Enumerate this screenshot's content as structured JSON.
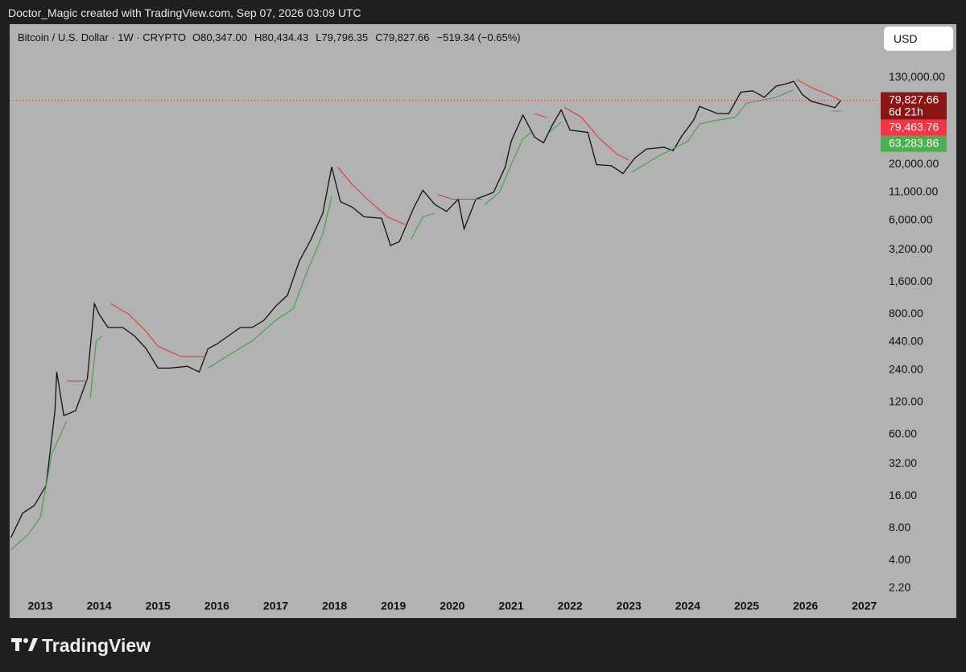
{
  "header": {
    "attribution": "Doctor_Magic created with TradingView.com, Sep 07, 2026 03:09 UTC"
  },
  "footer": {
    "brand": "TradingView"
  },
  "currency_button": "USD",
  "legend": {
    "symbol": "Bitcoin / U.S. Dollar · 1W · CRYPTO",
    "ohlc": [
      "O80,347.00",
      "H80,434.43",
      "L79,796.35",
      "C79,827.66",
      "−519.34 (−0.65%)"
    ]
  },
  "chart_data": {
    "type": "line",
    "log_scale": true,
    "grid": false,
    "xlim": [
      2012.48,
      2027.25
    ],
    "xticks": [
      2013,
      2014,
      2015,
      2016,
      2017,
      2018,
      2019,
      2020,
      2021,
      2022,
      2023,
      2024,
      2025,
      2026,
      2027
    ],
    "ylim": [
      1.87,
      411000
    ],
    "yticks": [
      {
        "value": 130000,
        "label": "130,000.00"
      },
      {
        "value": 20000,
        "label": "20,000.00"
      },
      {
        "value": 11000,
        "label": "11,000.00"
      },
      {
        "value": 6000,
        "label": "6,000.00"
      },
      {
        "value": 3200,
        "label": "3,200.00"
      },
      {
        "value": 1600,
        "label": "1,600.00"
      },
      {
        "value": 800,
        "label": "800.00"
      },
      {
        "value": 440,
        "label": "440.00"
      },
      {
        "value": 240,
        "label": "240.00"
      },
      {
        "value": 120,
        "label": "120.00"
      },
      {
        "value": 60,
        "label": "60.00"
      },
      {
        "value": 32,
        "label": "32.00"
      },
      {
        "value": 16,
        "label": "16.00"
      },
      {
        "value": 8,
        "label": "8.00"
      },
      {
        "value": 4,
        "label": "4.00"
      },
      {
        "value": 2.2,
        "label": "2.20"
      }
    ],
    "series": [
      {
        "color": "#111111",
        "x": [
          2012.5,
          2012.7,
          2012.9,
          2013.1,
          2013.25,
          2013.28,
          2013.4,
          2013.6,
          2013.8,
          2013.92,
          2014.0,
          2014.15,
          2014.4,
          2014.6,
          2014.8,
          2015.0,
          2015.2,
          2015.5,
          2015.7,
          2015.85,
          2016.0,
          2016.4,
          2016.6,
          2016.8,
          2017.0,
          2017.2,
          2017.4,
          2017.6,
          2017.8,
          2017.95,
          2018.1,
          2018.3,
          2018.5,
          2018.8,
          2018.95,
          2019.1,
          2019.35,
          2019.5,
          2019.7,
          2019.9,
          2020.1,
          2020.2,
          2020.4,
          2020.7,
          2020.9,
          2021.0,
          2021.2,
          2021.4,
          2021.55,
          2021.7,
          2021.85,
          2022.0,
          2022.3,
          2022.45,
          2022.7,
          2022.9,
          2023.1,
          2023.3,
          2023.6,
          2023.75,
          2023.9,
          2024.1,
          2024.2,
          2024.5,
          2024.7,
          2024.9,
          2025.1,
          2025.3,
          2025.5,
          2025.7,
          2025.8,
          2025.95,
          2026.1,
          2026.3,
          2026.5,
          2026.6
        ],
        "values": [
          6.5,
          11,
          13,
          20,
          100,
          230,
          90,
          100,
          200,
          1000,
          800,
          600,
          600,
          500,
          380,
          250,
          250,
          260,
          230,
          380,
          420,
          600,
          600,
          700,
          950,
          1200,
          2500,
          4000,
          7000,
          19000,
          9000,
          8000,
          6500,
          6300,
          3500,
          3800,
          8000,
          11500,
          8500,
          7300,
          9500,
          5000,
          9500,
          11000,
          19000,
          33000,
          58000,
          36000,
          32000,
          47000,
          65000,
          42000,
          40000,
          20000,
          19500,
          16500,
          23000,
          28000,
          29000,
          27000,
          37000,
          52000,
          70000,
          60000,
          60000,
          95000,
          98000,
          85000,
          108000,
          115000,
          120000,
          90000,
          78000,
          73000,
          68000,
          79827.66
        ]
      },
      {
        "color": "#e53935",
        "x": [
          2013.45,
          2013.8,
          2013.82,
          2014.2,
          2014.5,
          2014.8,
          2015.0,
          2015.4,
          2015.8,
          2015.82,
          2018.05,
          2018.3,
          2018.6,
          2018.9,
          2019.2,
          2019.22,
          2019.75,
          2020.0,
          2020.5,
          2020.52,
          2021.4,
          2021.6,
          2021.62,
          2021.9,
          2022.2,
          2022.5,
          2022.8,
          2023.0,
          2023.02,
          2025.85,
          2026.1,
          2026.4,
          2026.6
        ],
        "values": [
          190,
          190,
          null,
          1000,
          800,
          550,
          400,
          320,
          320,
          null,
          19000,
          13000,
          9000,
          6500,
          5500,
          null,
          10500,
          9500,
          9500,
          null,
          60000,
          55000,
          null,
          69000,
          55000,
          35000,
          25000,
          22000,
          null,
          125000,
          105000,
          90000,
          79463.76
        ]
      },
      {
        "color": "#43a047",
        "x": [
          2012.5,
          2012.8,
          2013.0,
          2013.2,
          2013.45,
          2013.47,
          2013.85,
          2013.95,
          2014.05,
          2014.07,
          2015.85,
          2016.2,
          2016.6,
          2017.0,
          2017.3,
          2017.5,
          2017.8,
          2017.95,
          2017.97,
          2019.3,
          2019.5,
          2019.7,
          2019.72,
          2020.55,
          2020.8,
          2021.0,
          2021.2,
          2021.35,
          2021.37,
          2021.65,
          2021.85,
          2021.87,
          2023.05,
          2023.5,
          2024.0,
          2024.2,
          2024.5,
          2024.8,
          2025.0,
          2025.5,
          2025.8,
          2025.82,
          2026.45,
          2026.6
        ],
        "values": [
          5,
          7,
          10,
          40,
          80,
          null,
          130,
          450,
          500,
          null,
          250,
          330,
          450,
          700,
          900,
          1800,
          4500,
          10000,
          null,
          4000,
          6500,
          7000,
          null,
          8500,
          11000,
          20000,
          35000,
          40000,
          null,
          40000,
          50000,
          null,
          17000,
          24000,
          33000,
          48000,
          52000,
          55000,
          75000,
          85000,
          100000,
          null,
          63283.86,
          63283.86
        ]
      }
    ],
    "price_labels": [
      {
        "value": 79827.66,
        "label": "79,827.66"
      },
      {
        "value": 79463.76,
        "label": "79,463.76"
      },
      {
        "value": 63283.86,
        "label": "63,283.86"
      }
    ],
    "countdown": "6d 21h",
    "price_label_colors": [
      "#8b1515",
      "#f23645",
      "#4caf50"
    ]
  }
}
